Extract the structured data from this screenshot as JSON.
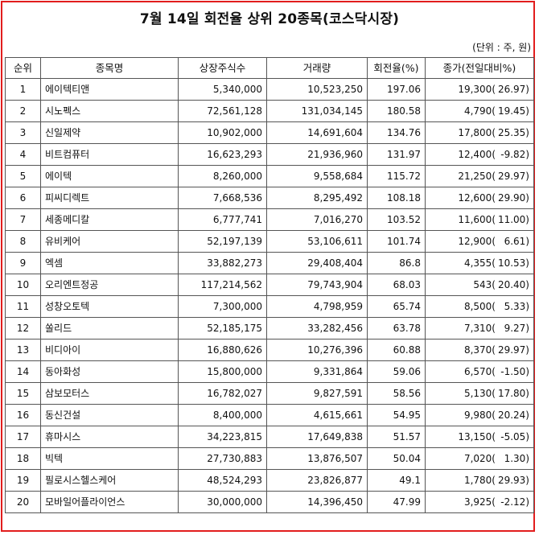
{
  "title": "7월 14일 회전율 상위 20종목(코스닥시장)",
  "unit_note": "(단위 : 주, 원)",
  "colors": {
    "frame": "#e21d1d"
  },
  "headers": [
    "순위",
    "종목명",
    "상장주식수",
    "거래량",
    "회전율(%)",
    "종가(전일대비%)"
  ],
  "rows": [
    {
      "rank": "1",
      "name": "에이텍티앤",
      "shares": "5,340,000",
      "volume": "10,523,250",
      "turnover": "197.06",
      "price": "19,300(",
      "change": "26.97)"
    },
    {
      "rank": "2",
      "name": "시노펙스",
      "shares": "72,561,128",
      "volume": "131,034,145",
      "turnover": "180.58",
      "price": "4,790(",
      "change": "19.45)"
    },
    {
      "rank": "3",
      "name": "신일제약",
      "shares": "10,902,000",
      "volume": "14,691,604",
      "turnover": "134.76",
      "price": "17,800(",
      "change": "25.35)"
    },
    {
      "rank": "4",
      "name": "비트컴퓨터",
      "shares": "16,623,293",
      "volume": "21,936,960",
      "turnover": "131.97",
      "price": "12,400(",
      "change": "-9.82)"
    },
    {
      "rank": "5",
      "name": "에이텍",
      "shares": "8,260,000",
      "volume": "9,558,684",
      "turnover": "115.72",
      "price": "21,250(",
      "change": "29.97)"
    },
    {
      "rank": "6",
      "name": "피씨디렉트",
      "shares": "7,668,536",
      "volume": "8,295,492",
      "turnover": "108.18",
      "price": "12,600(",
      "change": "29.90)"
    },
    {
      "rank": "7",
      "name": "세종메디칼",
      "shares": "6,777,741",
      "volume": "7,016,270",
      "turnover": "103.52",
      "price": "11,600(",
      "change": "11.00)"
    },
    {
      "rank": "8",
      "name": "유비케어",
      "shares": "52,197,139",
      "volume": "53,106,611",
      "turnover": "101.74",
      "price": "12,900(",
      "change": "6.61)"
    },
    {
      "rank": "9",
      "name": "엑셈",
      "shares": "33,882,273",
      "volume": "29,408,404",
      "turnover": "86.8",
      "price": "4,355(",
      "change": "10.53)"
    },
    {
      "rank": "10",
      "name": "오리엔트정공",
      "shares": "117,214,562",
      "volume": "79,743,904",
      "turnover": "68.03",
      "price": "543(",
      "change": "20.40)"
    },
    {
      "rank": "11",
      "name": "성창오토텍",
      "shares": "7,300,000",
      "volume": "4,798,959",
      "turnover": "65.74",
      "price": "8,500(",
      "change": "5.33)"
    },
    {
      "rank": "12",
      "name": "쏠리드",
      "shares": "52,185,175",
      "volume": "33,282,456",
      "turnover": "63.78",
      "price": "7,310(",
      "change": "9.27)"
    },
    {
      "rank": "13",
      "name": "비디아이",
      "shares": "16,880,626",
      "volume": "10,276,396",
      "turnover": "60.88",
      "price": "8,370(",
      "change": "29.97)"
    },
    {
      "rank": "14",
      "name": "동아화성",
      "shares": "15,800,000",
      "volume": "9,331,864",
      "turnover": "59.06",
      "price": "6,570(",
      "change": "-1.50)"
    },
    {
      "rank": "15",
      "name": "삼보모터스",
      "shares": "16,782,027",
      "volume": "9,827,591",
      "turnover": "58.56",
      "price": "5,130(",
      "change": "17.80)"
    },
    {
      "rank": "16",
      "name": "동신건설",
      "shares": "8,400,000",
      "volume": "4,615,661",
      "turnover": "54.95",
      "price": "9,980(",
      "change": "20.24)"
    },
    {
      "rank": "17",
      "name": "휴마시스",
      "shares": "34,223,815",
      "volume": "17,649,838",
      "turnover": "51.57",
      "price": "13,150(",
      "change": "-5.05)"
    },
    {
      "rank": "18",
      "name": "빅텍",
      "shares": "27,730,883",
      "volume": "13,876,507",
      "turnover": "50.04",
      "price": "7,020(",
      "change": "1.30)"
    },
    {
      "rank": "19",
      "name": "필로시스헬스케어",
      "shares": "48,524,293",
      "volume": "23,826,877",
      "turnover": "49.1",
      "price": "1,780(",
      "change": "29.93)"
    },
    {
      "rank": "20",
      "name": "모바일어플라이언스",
      "shares": "30,000,000",
      "volume": "14,396,450",
      "turnover": "47.99",
      "price": "3,925(",
      "change": "-2.12)"
    }
  ]
}
